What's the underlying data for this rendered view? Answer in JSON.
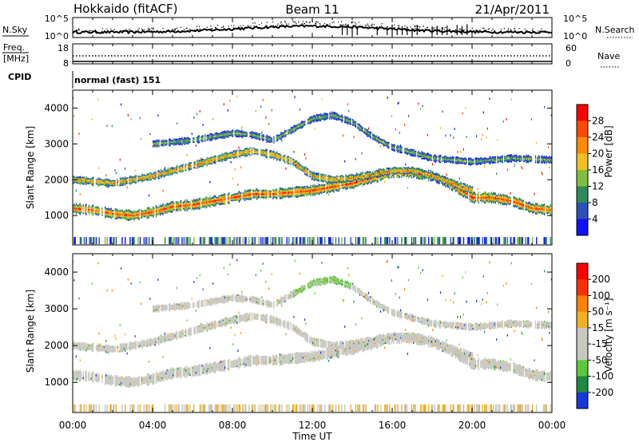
{
  "header": {
    "station": "Hokkaido (fitACF)",
    "beam": "Beam 11",
    "date": "21/Apr/2011"
  },
  "noise_panel": {
    "left_label": "N.Sky",
    "right_label": "N.Search",
    "left_ticks": [
      "10^5",
      "10^0"
    ],
    "right_ticks": [
      "10^5",
      "10^0"
    ]
  },
  "freq_panel": {
    "left_label_1": "Freq.",
    "left_label_2": "[MHz]",
    "right_label": "Nave",
    "left_ticks": [
      "18",
      "8"
    ],
    "right_ticks": [
      "60",
      "0"
    ]
  },
  "cpid": {
    "label": "CPID",
    "value": "normal (fast) 151"
  },
  "chart_data": [
    {
      "type": "heatmap",
      "title": "",
      "ylabel": "Slant Range [km]",
      "xlabel": "",
      "x_range_hours": [
        0,
        24
      ],
      "ylim": [
        180,
        4500
      ],
      "yticks": [
        1000,
        2000,
        3000,
        4000
      ],
      "colorbar": {
        "label": "Power [dB]",
        "ticks": [
          "4",
          "8",
          "12",
          "16",
          "20",
          "24",
          "28"
        ],
        "colors": [
          "#1010ff",
          "#2a52b8",
          "#2e8a5a",
          "#7fbf3f",
          "#f0c020",
          "#ff8a00",
          "#ff4a00",
          "#ff0000"
        ]
      }
    },
    {
      "type": "heatmap",
      "title": "",
      "ylabel": "Slant Range [km]",
      "xlabel": "Time UT",
      "x_range_hours": [
        0,
        24
      ],
      "ylim": [
        180,
        4500
      ],
      "yticks": [
        1000,
        2000,
        3000,
        4000
      ],
      "xticks": [
        "00:00",
        "04:00",
        "08:00",
        "12:00",
        "16:00",
        "20:00",
        "00:00"
      ],
      "colorbar": {
        "label": "Velocity [m s⁻¹]",
        "ticks": [
          "200",
          "100",
          "50",
          "15",
          "-15",
          "-50",
          "-100",
          "-200"
        ],
        "colors": [
          "#1838d8",
          "#1e8a40",
          "#5ac83a",
          "#c8c8c0",
          "#c8c8c0",
          "#f0b020",
          "#ff8000",
          "#ff3000",
          "#ff0000"
        ]
      }
    }
  ],
  "echo_bands": [
    {
      "name": "lower-band",
      "points": [
        [
          0,
          1200
        ],
        [
          1,
          1150
        ],
        [
          2,
          1050
        ],
        [
          3,
          1000
        ],
        [
          4,
          1100
        ],
        [
          5,
          1250
        ],
        [
          6,
          1300
        ],
        [
          7,
          1400
        ],
        [
          8,
          1500
        ],
        [
          9,
          1600
        ],
        [
          10,
          1600
        ],
        [
          11,
          1650
        ],
        [
          12,
          1700
        ],
        [
          13,
          1800
        ],
        [
          14,
          1900
        ],
        [
          15,
          2050
        ],
        [
          16,
          2200
        ],
        [
          17,
          2200
        ],
        [
          18,
          2100
        ],
        [
          19,
          1850
        ],
        [
          20,
          1500
        ],
        [
          21,
          1500
        ],
        [
          22,
          1400
        ],
        [
          23,
          1200
        ],
        [
          24,
          1150
        ]
      ]
    },
    {
      "name": "upper-band",
      "points": [
        [
          0,
          2000
        ],
        [
          2,
          1900
        ],
        [
          4,
          2100
        ],
        [
          6,
          2400
        ],
        [
          8,
          2700
        ],
        [
          9,
          2800
        ],
        [
          10,
          2700
        ],
        [
          11,
          2500
        ],
        [
          12,
          2100
        ],
        [
          13,
          2000
        ],
        [
          14,
          2050
        ],
        [
          15,
          2150
        ],
        [
          16,
          2250
        ],
        [
          17,
          2250
        ],
        [
          18,
          2100
        ],
        [
          19,
          1900
        ],
        [
          20,
          1700
        ]
      ]
    },
    {
      "name": "far-band",
      "points": [
        [
          4,
          3000
        ],
        [
          6,
          3100
        ],
        [
          7,
          3200
        ],
        [
          8,
          3300
        ],
        [
          9,
          3250
        ],
        [
          10,
          3100
        ],
        [
          11,
          3400
        ],
        [
          12,
          3700
        ],
        [
          13,
          3800
        ],
        [
          14,
          3600
        ],
        [
          15,
          3200
        ],
        [
          16,
          2900
        ],
        [
          18,
          2600
        ],
        [
          20,
          2500
        ],
        [
          22,
          2600
        ],
        [
          24,
          2550
        ]
      ]
    }
  ]
}
